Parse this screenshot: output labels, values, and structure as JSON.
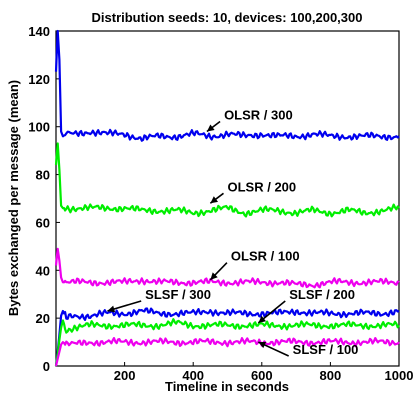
{
  "chart_data": {
    "type": "line",
    "title": "Distribution seeds: 10, devices: 100,200,300",
    "xlabel": "Timeline in seconds",
    "ylabel": "Bytes exchanged per message (mean)",
    "xlim": [
      0,
      1000
    ],
    "ylim": [
      0,
      140
    ],
    "xticks": [
      "200",
      "400",
      "600",
      "800",
      "1000"
    ],
    "yticks": [
      "0",
      "20",
      "40",
      "60",
      "80",
      "100",
      "120",
      "140"
    ],
    "grid": false,
    "series": [
      {
        "name": "OLSR / 300",
        "color": "#0000ee",
        "x": [
          0,
          5,
          10,
          15,
          20,
          30,
          50,
          100,
          150,
          200,
          250,
          300,
          350,
          400,
          450,
          500,
          550,
          600,
          650,
          700,
          750,
          800,
          850,
          900,
          950,
          1000
        ],
        "y": [
          123,
          140,
          128,
          98,
          96,
          97,
          97,
          98,
          97,
          97,
          95,
          96,
          96,
          97,
          96,
          97,
          96,
          97,
          96,
          96,
          97,
          96,
          96,
          96,
          96,
          96
        ]
      },
      {
        "name": "OLSR / 200",
        "color": "#00ee00",
        "x": [
          0,
          5,
          10,
          15,
          20,
          30,
          50,
          100,
          150,
          200,
          250,
          300,
          350,
          400,
          450,
          500,
          550,
          600,
          650,
          700,
          750,
          800,
          850,
          900,
          950,
          1000
        ],
        "y": [
          84,
          93,
          82,
          67,
          66,
          66,
          66,
          66,
          66,
          66,
          65,
          65,
          65,
          64,
          65,
          66,
          64,
          65,
          65,
          64,
          65,
          64,
          65,
          64,
          65,
          66
        ]
      },
      {
        "name": "OLSR / 100",
        "color": "#ee00ee",
        "x": [
          0,
          5,
          10,
          15,
          20,
          30,
          50,
          100,
          150,
          200,
          250,
          300,
          350,
          400,
          450,
          500,
          550,
          600,
          650,
          700,
          750,
          800,
          850,
          900,
          950,
          1000
        ],
        "y": [
          42,
          49,
          44,
          37,
          35,
          35,
          35,
          35,
          35,
          35,
          36,
          35,
          35,
          35,
          35,
          35,
          35,
          35,
          35,
          34,
          34,
          35,
          35,
          35,
          35,
          35
        ]
      },
      {
        "name": "SLSF / 300",
        "color": "#0000ee",
        "x": [
          0,
          5,
          10,
          15,
          20,
          30,
          50,
          100,
          150,
          200,
          250,
          300,
          350,
          400,
          450,
          500,
          550,
          600,
          650,
          700,
          750,
          800,
          850,
          900,
          950,
          1000
        ],
        "y": [
          0,
          6,
          13,
          21,
          23,
          20,
          21,
          21,
          22,
          22,
          23,
          22,
          22,
          22,
          23,
          22,
          22,
          22,
          22,
          23,
          22,
          22,
          22,
          22,
          22,
          23
        ]
      },
      {
        "name": "SLSF / 200",
        "color": "#00ee00",
        "x": [
          0,
          5,
          10,
          15,
          20,
          30,
          50,
          100,
          150,
          200,
          250,
          300,
          350,
          400,
          450,
          500,
          550,
          600,
          650,
          700,
          750,
          800,
          850,
          900,
          950,
          1000
        ],
        "y": [
          0,
          5,
          11,
          16,
          19,
          15,
          16,
          17,
          17,
          17,
          17,
          17,
          18,
          17,
          17,
          17,
          17,
          17,
          17,
          17,
          17,
          17,
          17,
          17,
          17,
          17
        ]
      },
      {
        "name": "SLSF / 100",
        "color": "#ee00ee",
        "x": [
          0,
          5,
          10,
          15,
          20,
          30,
          50,
          100,
          150,
          200,
          250,
          300,
          350,
          400,
          450,
          500,
          550,
          600,
          650,
          700,
          750,
          800,
          850,
          900,
          950,
          1000
        ],
        "y": [
          0,
          3,
          6,
          9,
          10,
          9,
          9,
          10,
          10,
          10,
          10,
          10,
          10,
          10,
          10,
          10,
          10,
          10,
          10,
          10,
          10,
          10,
          10,
          10,
          10,
          10
        ]
      }
    ],
    "annotations": [
      {
        "text": "OLSR / 300",
        "x": 490,
        "y": 103,
        "arrow_to": [
          440,
          98
        ]
      },
      {
        "text": "OLSR / 200",
        "x": 500,
        "y": 73,
        "arrow_to": [
          450,
          68
        ]
      },
      {
        "text": "OLSR / 100",
        "x": 510,
        "y": 44,
        "arrow_to": [
          450,
          36
        ]
      },
      {
        "text": "SLSF / 300",
        "x": 260,
        "y": 28,
        "arrow_to": [
          150,
          23
        ]
      },
      {
        "text": "SLSF / 200",
        "x": 680,
        "y": 28,
        "arrow_to": [
          590,
          18
        ]
      },
      {
        "text": "SLSF / 100",
        "x": 690,
        "y": 5,
        "arrow_to": [
          590,
          10
        ]
      }
    ]
  }
}
